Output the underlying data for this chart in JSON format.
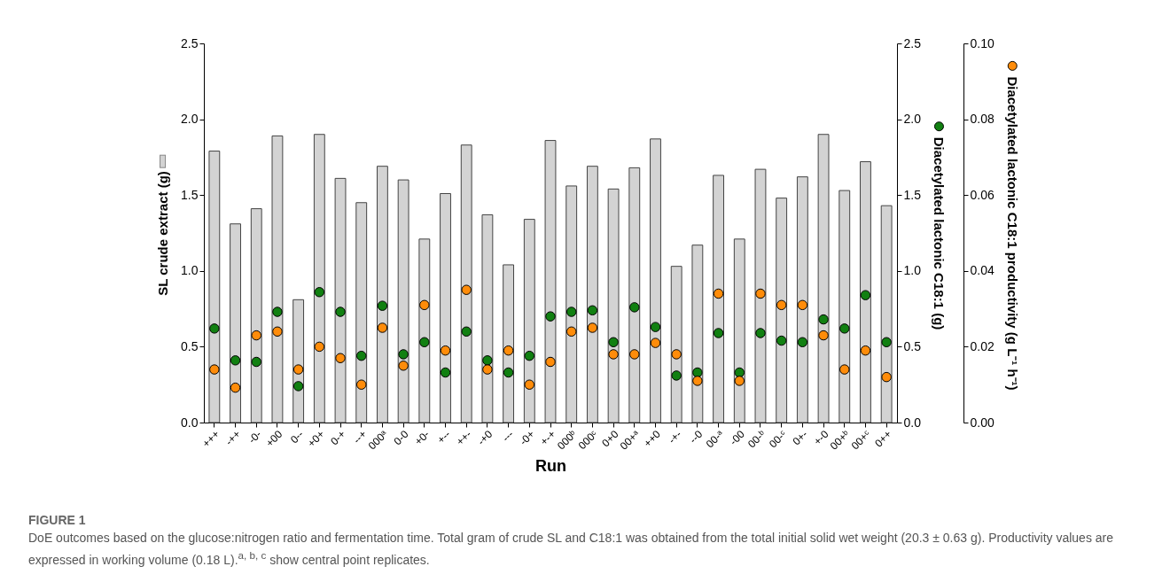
{
  "chart_data": {
    "type": "bar",
    "title": "FIGURE 1",
    "xlabel": "Run",
    "ylabel": "SL crude extract (g)",
    "y2label": "Diacetylated lactonic C18:1 (g)",
    "y3label": "Diacetylated lactonic C18:1 productivity (g L⁻¹ h⁻¹)",
    "annotations": [
      "DoE outcomes based on the glucose:nitrogen ratio and fermentation time. Total gram of crude SL and C18:1 was obtained from the total initial solid wet weight (20.3 ± 0.63 g). Productivity values are expressed in working volume (0.18 L).$^{a, b, c}$ show central point replicates."
    ],
    "categories": [
      "+++",
      "-++",
      "-0-",
      "+00",
      "0--",
      "+0+",
      "0-+",
      "--+",
      "000ᵃ",
      "0-0",
      "+0-",
      "+--",
      "++-",
      "-+0",
      "---",
      "-0+",
      "+-+",
      "000ᵇ",
      "000ᶜ",
      "0+0",
      "00+ᵃ",
      "++0",
      "-+-",
      "--0",
      "00-ᵃ",
      "-00",
      "00-ᵇ",
      "00-ᶜ",
      "0+-",
      "+-0",
      "00+ᵇ",
      "00+ᶜ",
      "0++"
    ],
    "series": [
      {
        "axis": "y",
        "color": "#d3d3d3",
        "values": [
          1.79,
          1.31,
          1.41,
          1.89,
          0.81,
          1.9,
          1.61,
          1.45,
          1.69,
          1.6,
          1.21,
          1.51,
          1.83,
          1.37,
          1.04,
          1.34,
          1.86,
          1.56,
          1.69,
          1.54,
          1.68,
          1.87,
          1.03,
          1.17,
          1.63,
          1.21,
          1.67,
          1.48,
          1.62,
          1.9,
          1.53,
          1.72,
          1.43
        ]
      },
      {
        "type": "scatter",
        "axis": "y2",
        "color": "#118011",
        "values": [
          0.62,
          0.41,
          0.4,
          0.73,
          0.24,
          0.86,
          0.73,
          0.44,
          0.77,
          0.45,
          0.53,
          0.33,
          0.6,
          0.41,
          0.33,
          0.44,
          0.7,
          0.73,
          0.74,
          0.53,
          0.76,
          0.63,
          0.31,
          0.33,
          0.59,
          0.33,
          0.59,
          0.54,
          0.53,
          0.68,
          0.62,
          0.84,
          0.53
        ]
      },
      {
        "type": "scatter",
        "axis": "y3",
        "color": "#ff8c0a",
        "values": [
          0.014,
          0.0092,
          0.023,
          0.024,
          0.014,
          0.02,
          0.017,
          0.01,
          0.025,
          0.015,
          0.031,
          0.019,
          0.035,
          0.014,
          0.019,
          0.01,
          0.016,
          0.024,
          0.025,
          0.018,
          0.018,
          0.021,
          0.018,
          0.011,
          0.034,
          0.011,
          0.034,
          0.031,
          0.031,
          0.023,
          0.014,
          0.019,
          0.012
        ]
      }
    ],
    "ylim": [
      0,
      2.5
    ],
    "yticks": [
      {
        "value": 0,
        "label": "0.0"
      },
      {
        "value": 0.5,
        "label": "0.5"
      },
      {
        "value": 1,
        "label": "1.0"
      },
      {
        "value": 1.5,
        "label": "1.5"
      },
      {
        "value": 2,
        "label": "2.0"
      },
      {
        "value": 2.5,
        "label": "2.5"
      }
    ],
    "y2lim": [
      0,
      2.5
    ],
    "y2ticks": [
      {
        "value": 0,
        "label": "0.0"
      },
      {
        "value": 0.5,
        "label": "0.5"
      },
      {
        "value": 1,
        "label": "1.0"
      },
      {
        "value": 1.5,
        "label": "1.5"
      },
      {
        "value": 2,
        "label": "2.0"
      },
      {
        "value": 2.5,
        "label": "2.5"
      }
    ],
    "y3lim": [
      0,
      0.1
    ],
    "y3ticks": [
      {
        "value": 0,
        "label": "0.00"
      },
      {
        "value": 0.02,
        "label": "0.02"
      },
      {
        "value": 0.04,
        "label": "0.04"
      },
      {
        "value": 0.06,
        "label": "0.06"
      },
      {
        "value": 0.08,
        "label": "0.08"
      },
      {
        "value": 0.1,
        "label": "0.10"
      }
    ],
    "marker": "circle",
    "grid": false
  }
}
